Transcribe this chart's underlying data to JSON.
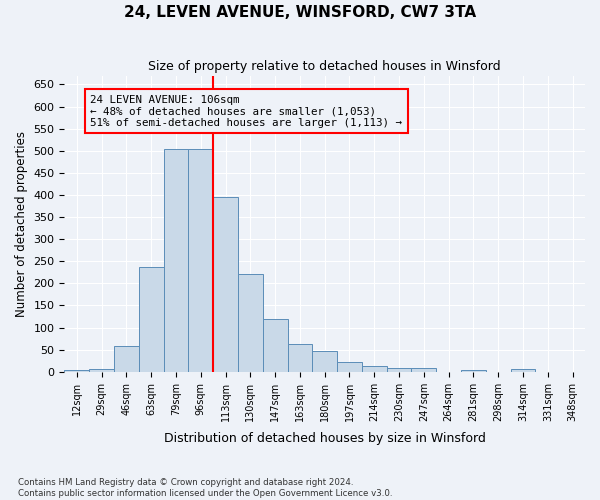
{
  "title1": "24, LEVEN AVENUE, WINSFORD, CW7 3TA",
  "title2": "Size of property relative to detached houses in Winsford",
  "xlabel": "Distribution of detached houses by size in Winsford",
  "ylabel": "Number of detached properties",
  "footnote1": "Contains HM Land Registry data © Crown copyright and database right 2024.",
  "footnote2": "Contains public sector information licensed under the Open Government Licence v3.0.",
  "bin_labels": [
    "12sqm",
    "29sqm",
    "46sqm",
    "63sqm",
    "79sqm",
    "96sqm",
    "113sqm",
    "130sqm",
    "147sqm",
    "163sqm",
    "180sqm",
    "197sqm",
    "214sqm",
    "230sqm",
    "247sqm",
    "264sqm",
    "281sqm",
    "298sqm",
    "314sqm",
    "331sqm",
    "348sqm"
  ],
  "bar_values": [
    5,
    7,
    58,
    238,
    505,
    505,
    395,
    222,
    120,
    62,
    47,
    22,
    12,
    8,
    8,
    0,
    5,
    0,
    6,
    0,
    0
  ],
  "bar_color": "#c9d9e8",
  "bar_edge_color": "#5b8db8",
  "vline_x": 5.5,
  "vline_color": "red",
  "ylim": [
    0,
    670
  ],
  "yticks": [
    0,
    50,
    100,
    150,
    200,
    250,
    300,
    350,
    400,
    450,
    500,
    550,
    600,
    650
  ],
  "annotation_text": "24 LEVEN AVENUE: 106sqm\n← 48% of detached houses are smaller (1,053)\n51% of semi-detached houses are larger (1,113) →",
  "annotation_box_color": "red",
  "bg_color": "#eef2f8",
  "grid_color": "white"
}
